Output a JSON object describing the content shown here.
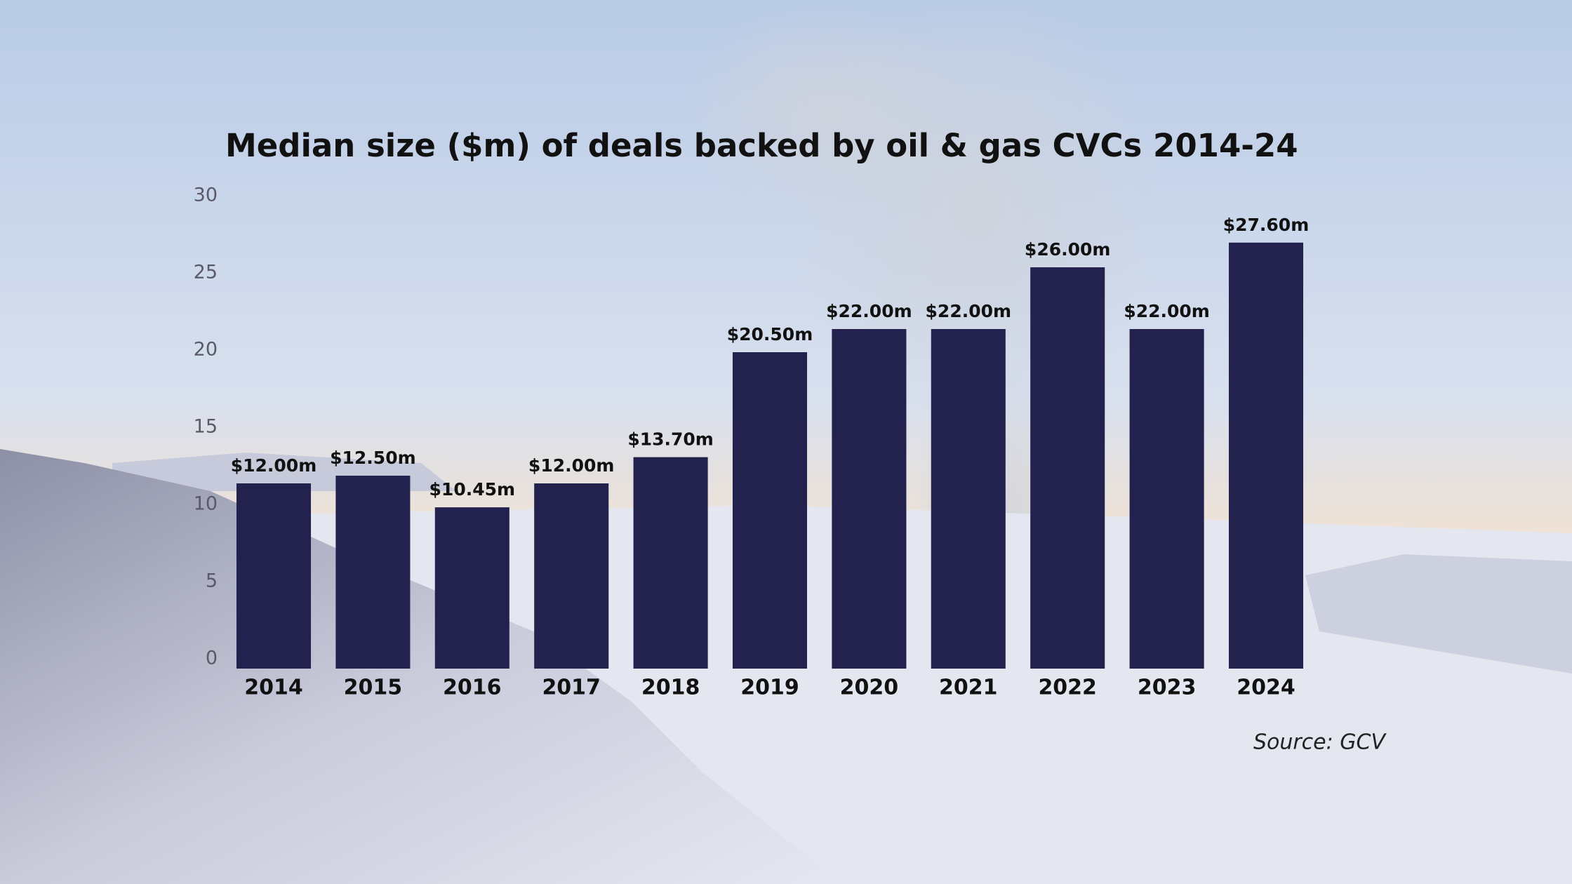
{
  "chart_data": {
    "type": "bar",
    "title": "Median size ($m) of deals backed by oil & gas CVCs 2014-24",
    "categories": [
      "2014",
      "2015",
      "2016",
      "2017",
      "2018",
      "2019",
      "2020",
      "2021",
      "2022",
      "2023",
      "2024"
    ],
    "values": [
      12.0,
      12.5,
      10.45,
      12.0,
      13.7,
      20.5,
      22.0,
      22.0,
      26.0,
      22.0,
      27.6
    ],
    "value_labels": [
      "$12.00m",
      "$12.50m",
      "$10.45m",
      "$12.00m",
      "$13.70m",
      "$20.50m",
      "$22.00m",
      "$22.00m",
      "$26.00m",
      "$22.00m",
      "$27.60m"
    ],
    "color": "#23214e",
    "ylim": [
      0,
      30
    ],
    "yticks": [
      0,
      5,
      10,
      15,
      20,
      25,
      30
    ],
    "grid": false,
    "source": "Source: GCV"
  }
}
